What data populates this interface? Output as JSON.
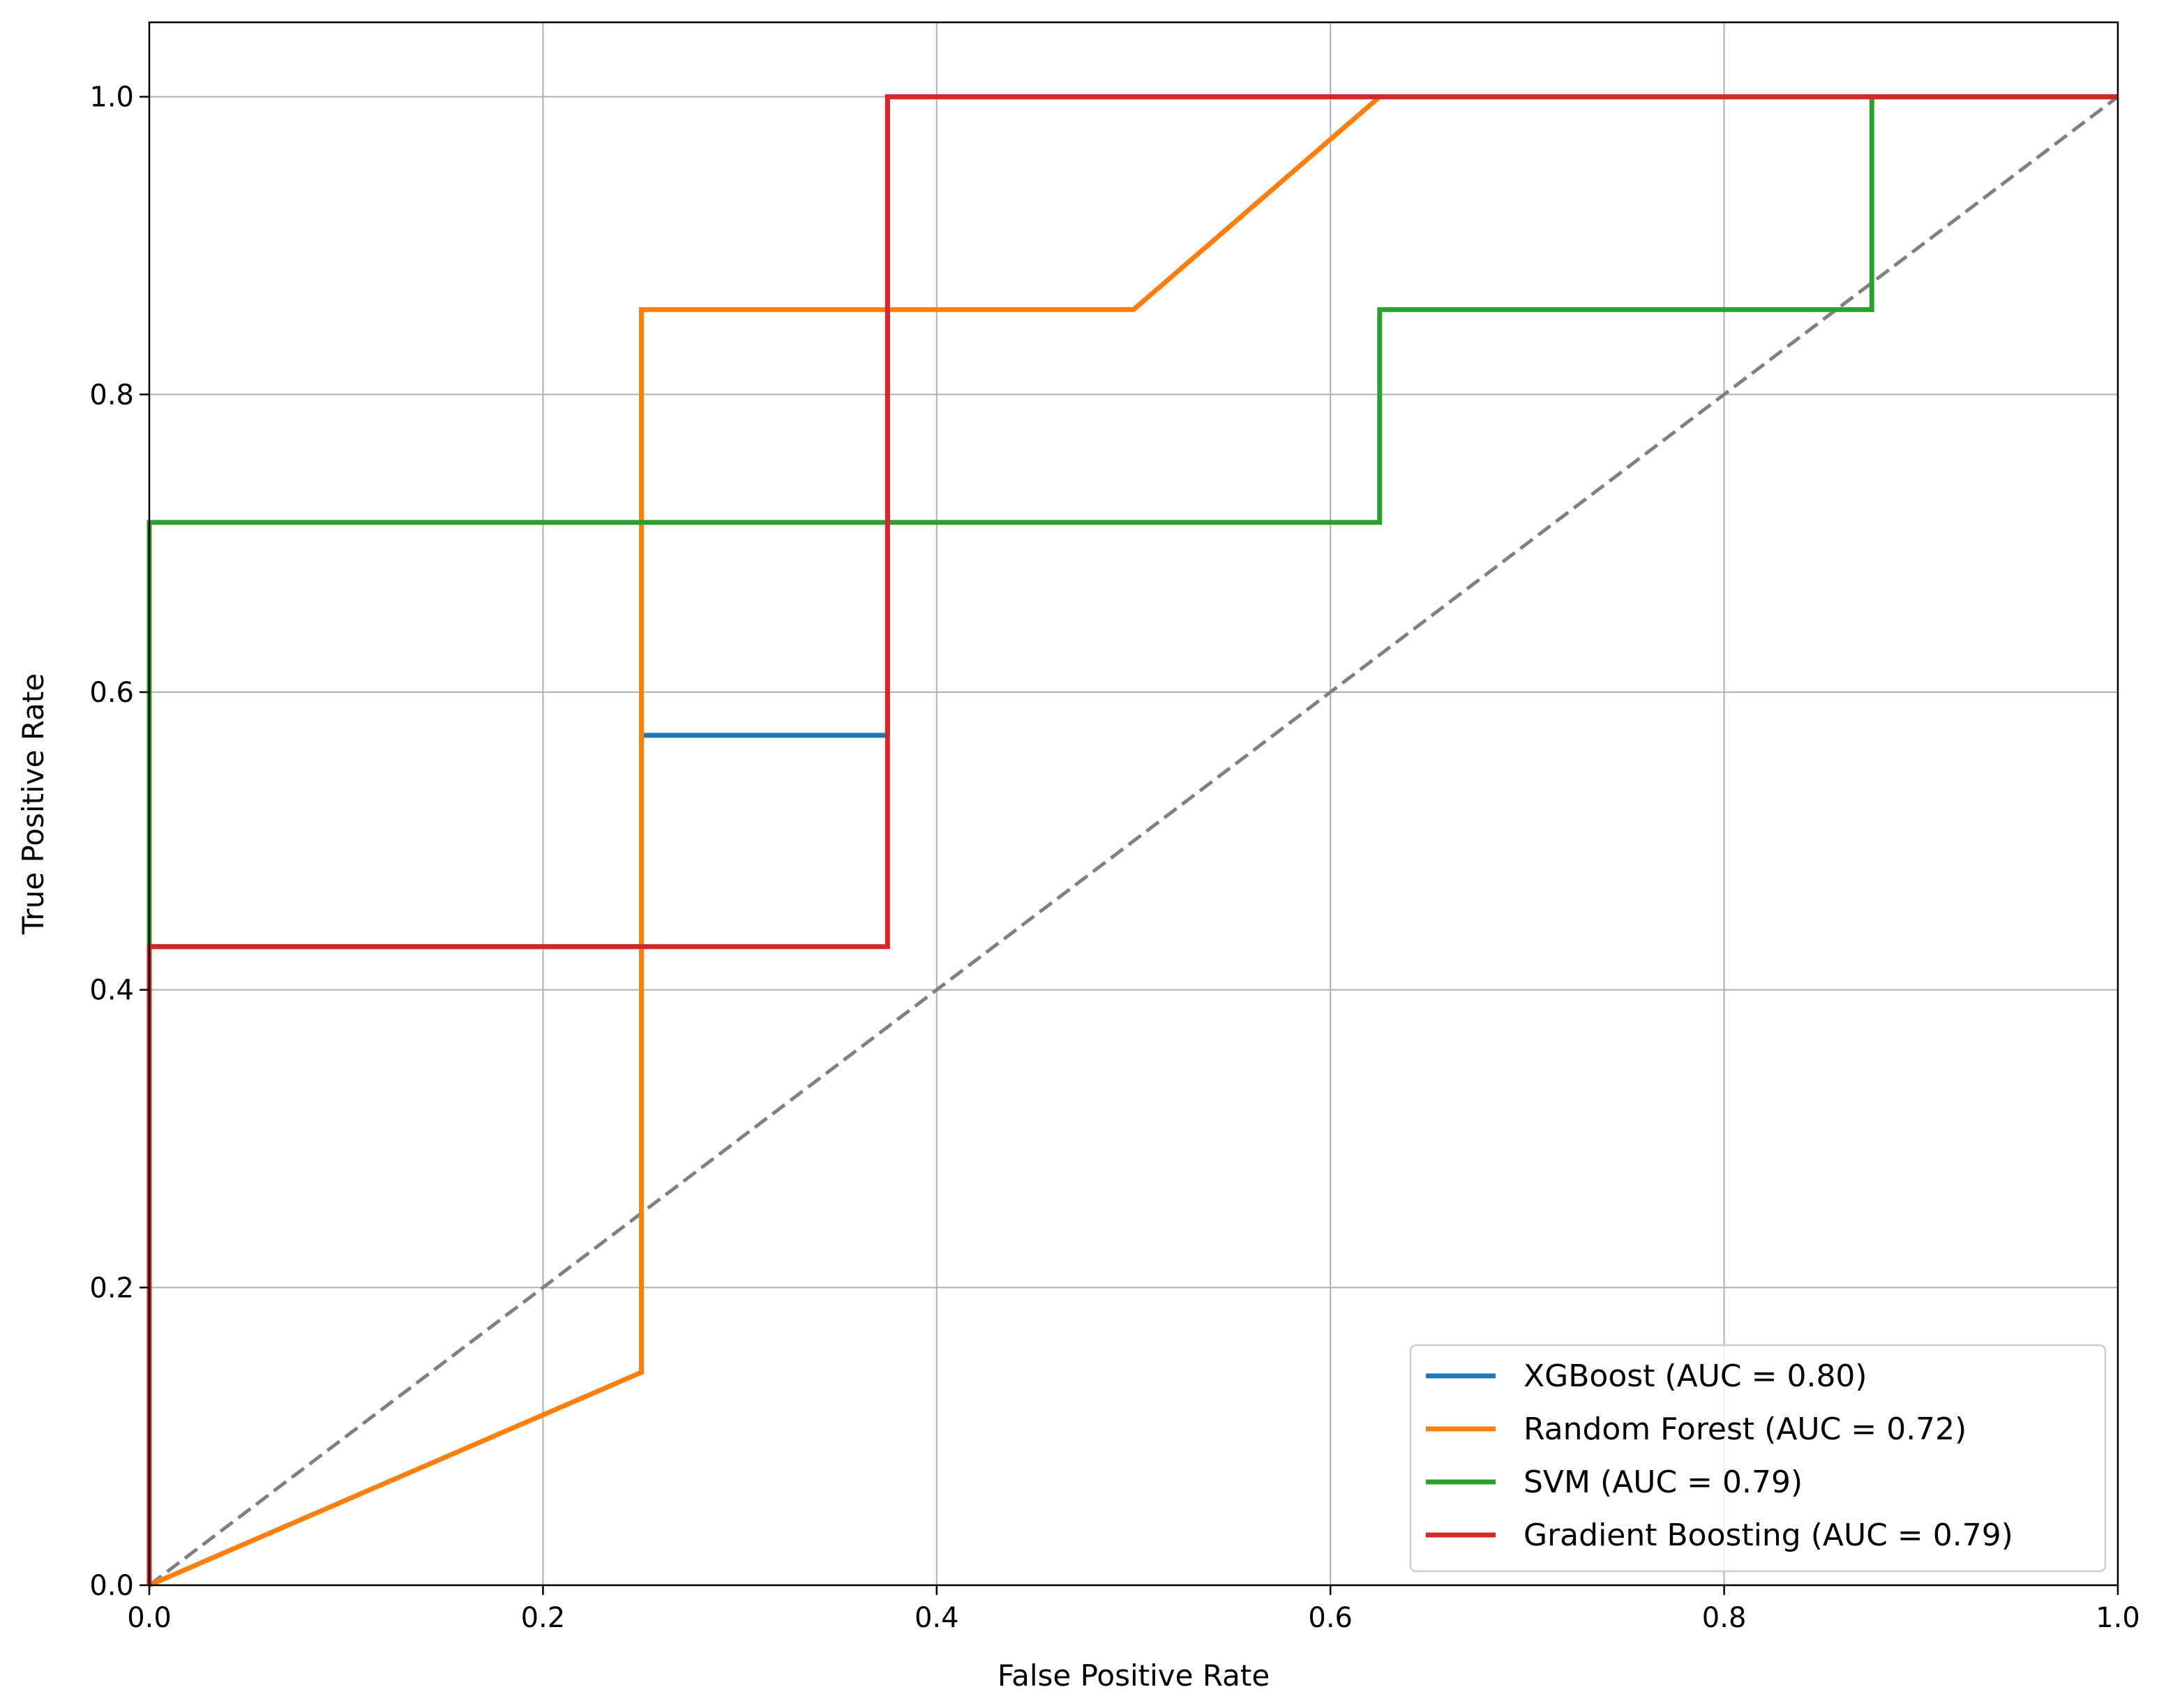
{
  "chart_data": {
    "type": "line",
    "title": "",
    "xlabel": "False Positive Rate",
    "ylabel": "True Positive Rate",
    "xlim": [
      0.0,
      1.0
    ],
    "ylim": [
      0.0,
      1.05
    ],
    "xticks": [
      "0.0",
      "0.2",
      "0.4",
      "0.6",
      "0.8",
      "1.0"
    ],
    "yticks": [
      "0.0",
      "0.2",
      "0.4",
      "0.6",
      "0.8",
      "1.0"
    ],
    "grid": true,
    "legend_position": "lower right",
    "series": [
      {
        "name": "XGBoost (AUC = 0.80)",
        "color": "#1f77b4",
        "x": [
          0.0,
          0.0,
          0.25,
          0.25,
          0.375,
          0.375,
          1.0
        ],
        "y": [
          0.0,
          0.429,
          0.429,
          0.571,
          0.571,
          1.0,
          1.0
        ]
      },
      {
        "name": "Random Forest (AUC = 0.72)",
        "color": "#ff7f0e",
        "x": [
          0.0,
          0.25,
          0.25,
          0.5,
          0.625,
          1.0
        ],
        "y": [
          0.0,
          0.143,
          0.857,
          0.857,
          1.0,
          1.0
        ]
      },
      {
        "name": "SVM (AUC = 0.79)",
        "color": "#2ca02c",
        "x": [
          0.0,
          0.0,
          0.625,
          0.625,
          0.875,
          0.875,
          1.0
        ],
        "y": [
          0.0,
          0.714,
          0.714,
          0.857,
          0.857,
          1.0,
          1.0
        ]
      },
      {
        "name": "Gradient Boosting (AUC = 0.79)",
        "color": "#d62728",
        "x": [
          0.0,
          0.0,
          0.375,
          0.375,
          1.0
        ],
        "y": [
          0.0,
          0.429,
          0.429,
          1.0,
          1.0
        ]
      }
    ],
    "reference_line": {
      "x": [
        0.0,
        1.0
      ],
      "y": [
        0.0,
        1.0
      ],
      "style": "dashed",
      "color": "#808080"
    }
  }
}
